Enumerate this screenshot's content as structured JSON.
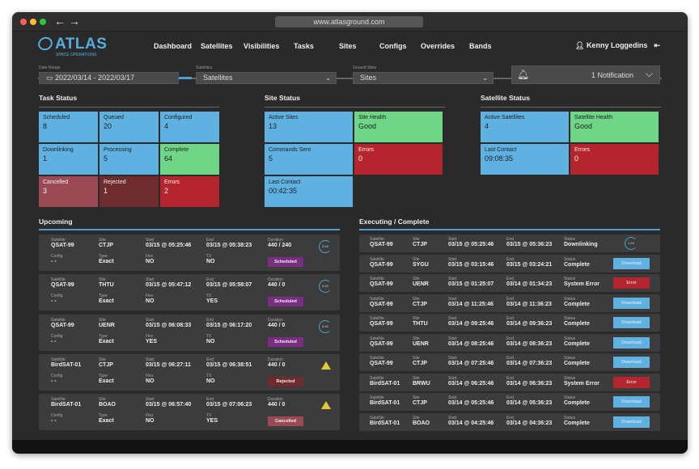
{
  "browser": {
    "url": "www.atlasground.com"
  },
  "brand": {
    "name": "ATLAS",
    "tagline": "SPACE OPERATIONS"
  },
  "nav": [
    "Dashboard",
    "Satellites",
    "Visibilities",
    "Tasks",
    "Sites",
    "Configs",
    "Overrides",
    "Bands"
  ],
  "user": {
    "name": "Kenny Loggedins"
  },
  "filters": {
    "date_label": "Date Range",
    "date_value": "2022/03/14 - 2022/03/17",
    "sat_label": "Satellites",
    "sat_value": "Satellites",
    "site_label": "Ground Sites",
    "site_value": "Sites"
  },
  "notification": {
    "label": "1 Notification"
  },
  "task_status": {
    "title": "Task Status",
    "tiles": [
      {
        "label": "Scheduled",
        "value": "8",
        "color": "blue"
      },
      {
        "label": "Queued",
        "value": "20",
        "color": "blue"
      },
      {
        "label": "Configured",
        "value": "4",
        "color": "blue"
      },
      {
        "label": "Downlinking",
        "value": "1",
        "color": "blue"
      },
      {
        "label": "Processing",
        "value": "5",
        "color": "blue"
      },
      {
        "label": "Complete",
        "value": "64",
        "color": "green"
      },
      {
        "label": "Cancelled",
        "value": "3",
        "color": "pred"
      },
      {
        "label": "Rejected",
        "value": "1",
        "color": "dred"
      },
      {
        "label": "Errors",
        "value": "2",
        "color": "red"
      }
    ]
  },
  "site_status": {
    "title": "Site Status",
    "tiles": [
      {
        "label": "Active Sites",
        "value": "13",
        "color": "blue"
      },
      {
        "label": "Site Health",
        "value": "Good",
        "color": "green"
      },
      {
        "label": "Commands Sent",
        "value": "5",
        "color": "blue"
      },
      {
        "label": "Errors",
        "value": "0",
        "color": "red"
      },
      {
        "label": "Last Contact",
        "value": "00:42:35",
        "color": "blue"
      }
    ]
  },
  "satellite_status": {
    "title": "Satellite Status",
    "tiles": [
      {
        "label": "Active Satellites",
        "value": "4",
        "color": "blue"
      },
      {
        "label": "Satellite Health",
        "value": "Good",
        "color": "green"
      },
      {
        "label": "Last Contact",
        "value": "09:08:35",
        "color": "blue"
      },
      {
        "label": "Errors",
        "value": "0",
        "color": "red"
      }
    ]
  },
  "upcoming": {
    "title": "Upcoming",
    "labels": {
      "satellite": "Satellite",
      "site": "Site",
      "start": "Start",
      "end": "End",
      "duration": "Duration",
      "config": "Config",
      "type": "Type",
      "flex": "Flex",
      "tx": "TX"
    },
    "rows": [
      {
        "satellite": "QSAT-99",
        "site": "CTJP",
        "start": "03/15 @ 05:25:46",
        "end": "03/15 @ 05:38:23",
        "duration": "440 / 240",
        "config": "- -",
        "type": "Exact",
        "flex": "NO",
        "tx": "NO",
        "status": "Scheduled",
        "indicator": "timer",
        "timer": "5:45"
      },
      {
        "satellite": "QSAT-99",
        "site": "THTU",
        "start": "03/15 @ 05:47:12",
        "end": "03/15 @ 05:58:07",
        "duration": "440 / 0",
        "config": "- -",
        "type": "Exact",
        "flex": "NO",
        "tx": "YES",
        "status": "Scheduled",
        "indicator": "timer",
        "timer": "5:45"
      },
      {
        "satellite": "QSAT-99",
        "site": "UENR",
        "start": "03/15 @ 06:08:33",
        "end": "03/15 @ 06:17:20",
        "duration": "440 / 0",
        "config": "- -",
        "type": "Exact",
        "flex": "YES",
        "tx": "NO",
        "status": "Scheduled",
        "indicator": "timer",
        "timer": "5:45"
      },
      {
        "satellite": "BirdSAT-01",
        "site": "CTJP",
        "start": "03/15 @ 06:27:11",
        "end": "03/15 @ 06:38:51",
        "duration": "440 / 0",
        "config": "- -",
        "type": "Exact",
        "flex": "NO",
        "tx": "NO",
        "status": "Rejected",
        "indicator": "warning"
      },
      {
        "satellite": "BirdSAT-01",
        "site": "BOAO",
        "start": "03/15 @ 06:57:40",
        "end": "03/15 @ 07:06:23",
        "duration": "440 / 0",
        "config": "- -",
        "type": "Exact",
        "flex": "NO",
        "tx": "YES",
        "status": "Cancelled",
        "indicator": "warning"
      }
    ]
  },
  "executing": {
    "title": "Executing / Complete",
    "labels": {
      "satellite": "Satellite",
      "site": "Site",
      "start": "Start",
      "end": "End",
      "status": "Status"
    },
    "rows": [
      {
        "satellite": "QSAT-99",
        "site": "CTJP",
        "start": "03/15 @ 05:25:46",
        "end": "03/15 @ 05:36:23",
        "status": "Downlinking",
        "action": "timer",
        "timer": "1:45"
      },
      {
        "satellite": "QSAT-99",
        "site": "SYGU",
        "start": "03/15 @ 03:15:46",
        "end": "03/15 @ 03:24:21",
        "status": "Complete",
        "action": "Download"
      },
      {
        "satellite": "QSAT-99",
        "site": "UENR",
        "start": "03/15 @ 01:25:07",
        "end": "03/14 @ 01:34:23",
        "status": "System Error",
        "action": "Error"
      },
      {
        "satellite": "QSAT-99",
        "site": "CTJP",
        "start": "03/14 @ 11:25:46",
        "end": "03/14 @ 11:36:23",
        "status": "Complete",
        "action": "Download"
      },
      {
        "satellite": "QSAT-99",
        "site": "THTU",
        "start": "03/14 @ 09:25:46",
        "end": "03/14 @ 09:36:23",
        "status": "Complete",
        "action": "Download"
      },
      {
        "satellite": "QSAT-99",
        "site": "UENR",
        "start": "03/14 @ 08:25:46",
        "end": "03/14 @ 08:36:23",
        "status": "Complete",
        "action": "Download"
      },
      {
        "satellite": "QSAT-99",
        "site": "CTJP",
        "start": "03/14 @ 07:25:46",
        "end": "03/14 @ 07:36:23",
        "status": "Complete",
        "action": "Download"
      },
      {
        "satellite": "BirdSAT-01",
        "site": "BRWU",
        "start": "03/14 @ 06:25:46",
        "end": "03/14 @ 06:36:23",
        "status": "System Error",
        "action": "Error"
      },
      {
        "satellite": "BirdSAT-01",
        "site": "CTJP",
        "start": "03/14 @ 05:25:46",
        "end": "03/14 @ 05:36:23",
        "status": "Complete",
        "action": "Download"
      },
      {
        "satellite": "BirdSAT-01",
        "site": "BOAO",
        "start": "03/14 @ 04:25:46",
        "end": "03/14 @ 04:36:23",
        "status": "Complete",
        "action": "Download"
      }
    ]
  }
}
